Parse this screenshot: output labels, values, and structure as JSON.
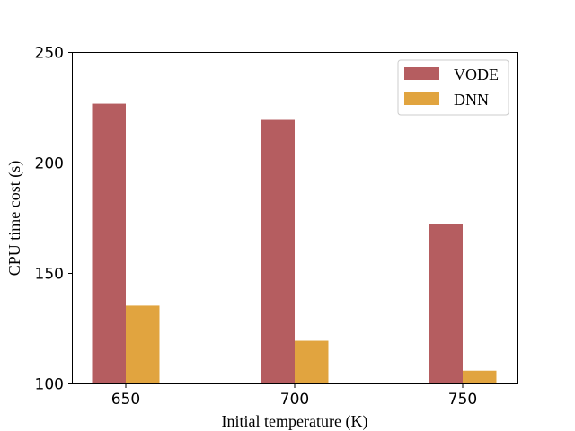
{
  "chart_data": {
    "type": "bar",
    "title": "",
    "xlabel": "Initial temperature (K)",
    "ylabel": "CPU time cost (s)",
    "categories": [
      "650",
      "700",
      "750"
    ],
    "series": [
      {
        "name": "VODE",
        "color": "#b55d60",
        "values": [
          226.8,
          219.5,
          172.4
        ]
      },
      {
        "name": "DNN",
        "color": "#e1a43f",
        "values": [
          135.4,
          119.5,
          106.0
        ]
      }
    ],
    "ylim": [
      100,
      250
    ],
    "yticks": [
      "100",
      "150",
      "200",
      "250"
    ],
    "grid": false,
    "legend": "top-right"
  }
}
